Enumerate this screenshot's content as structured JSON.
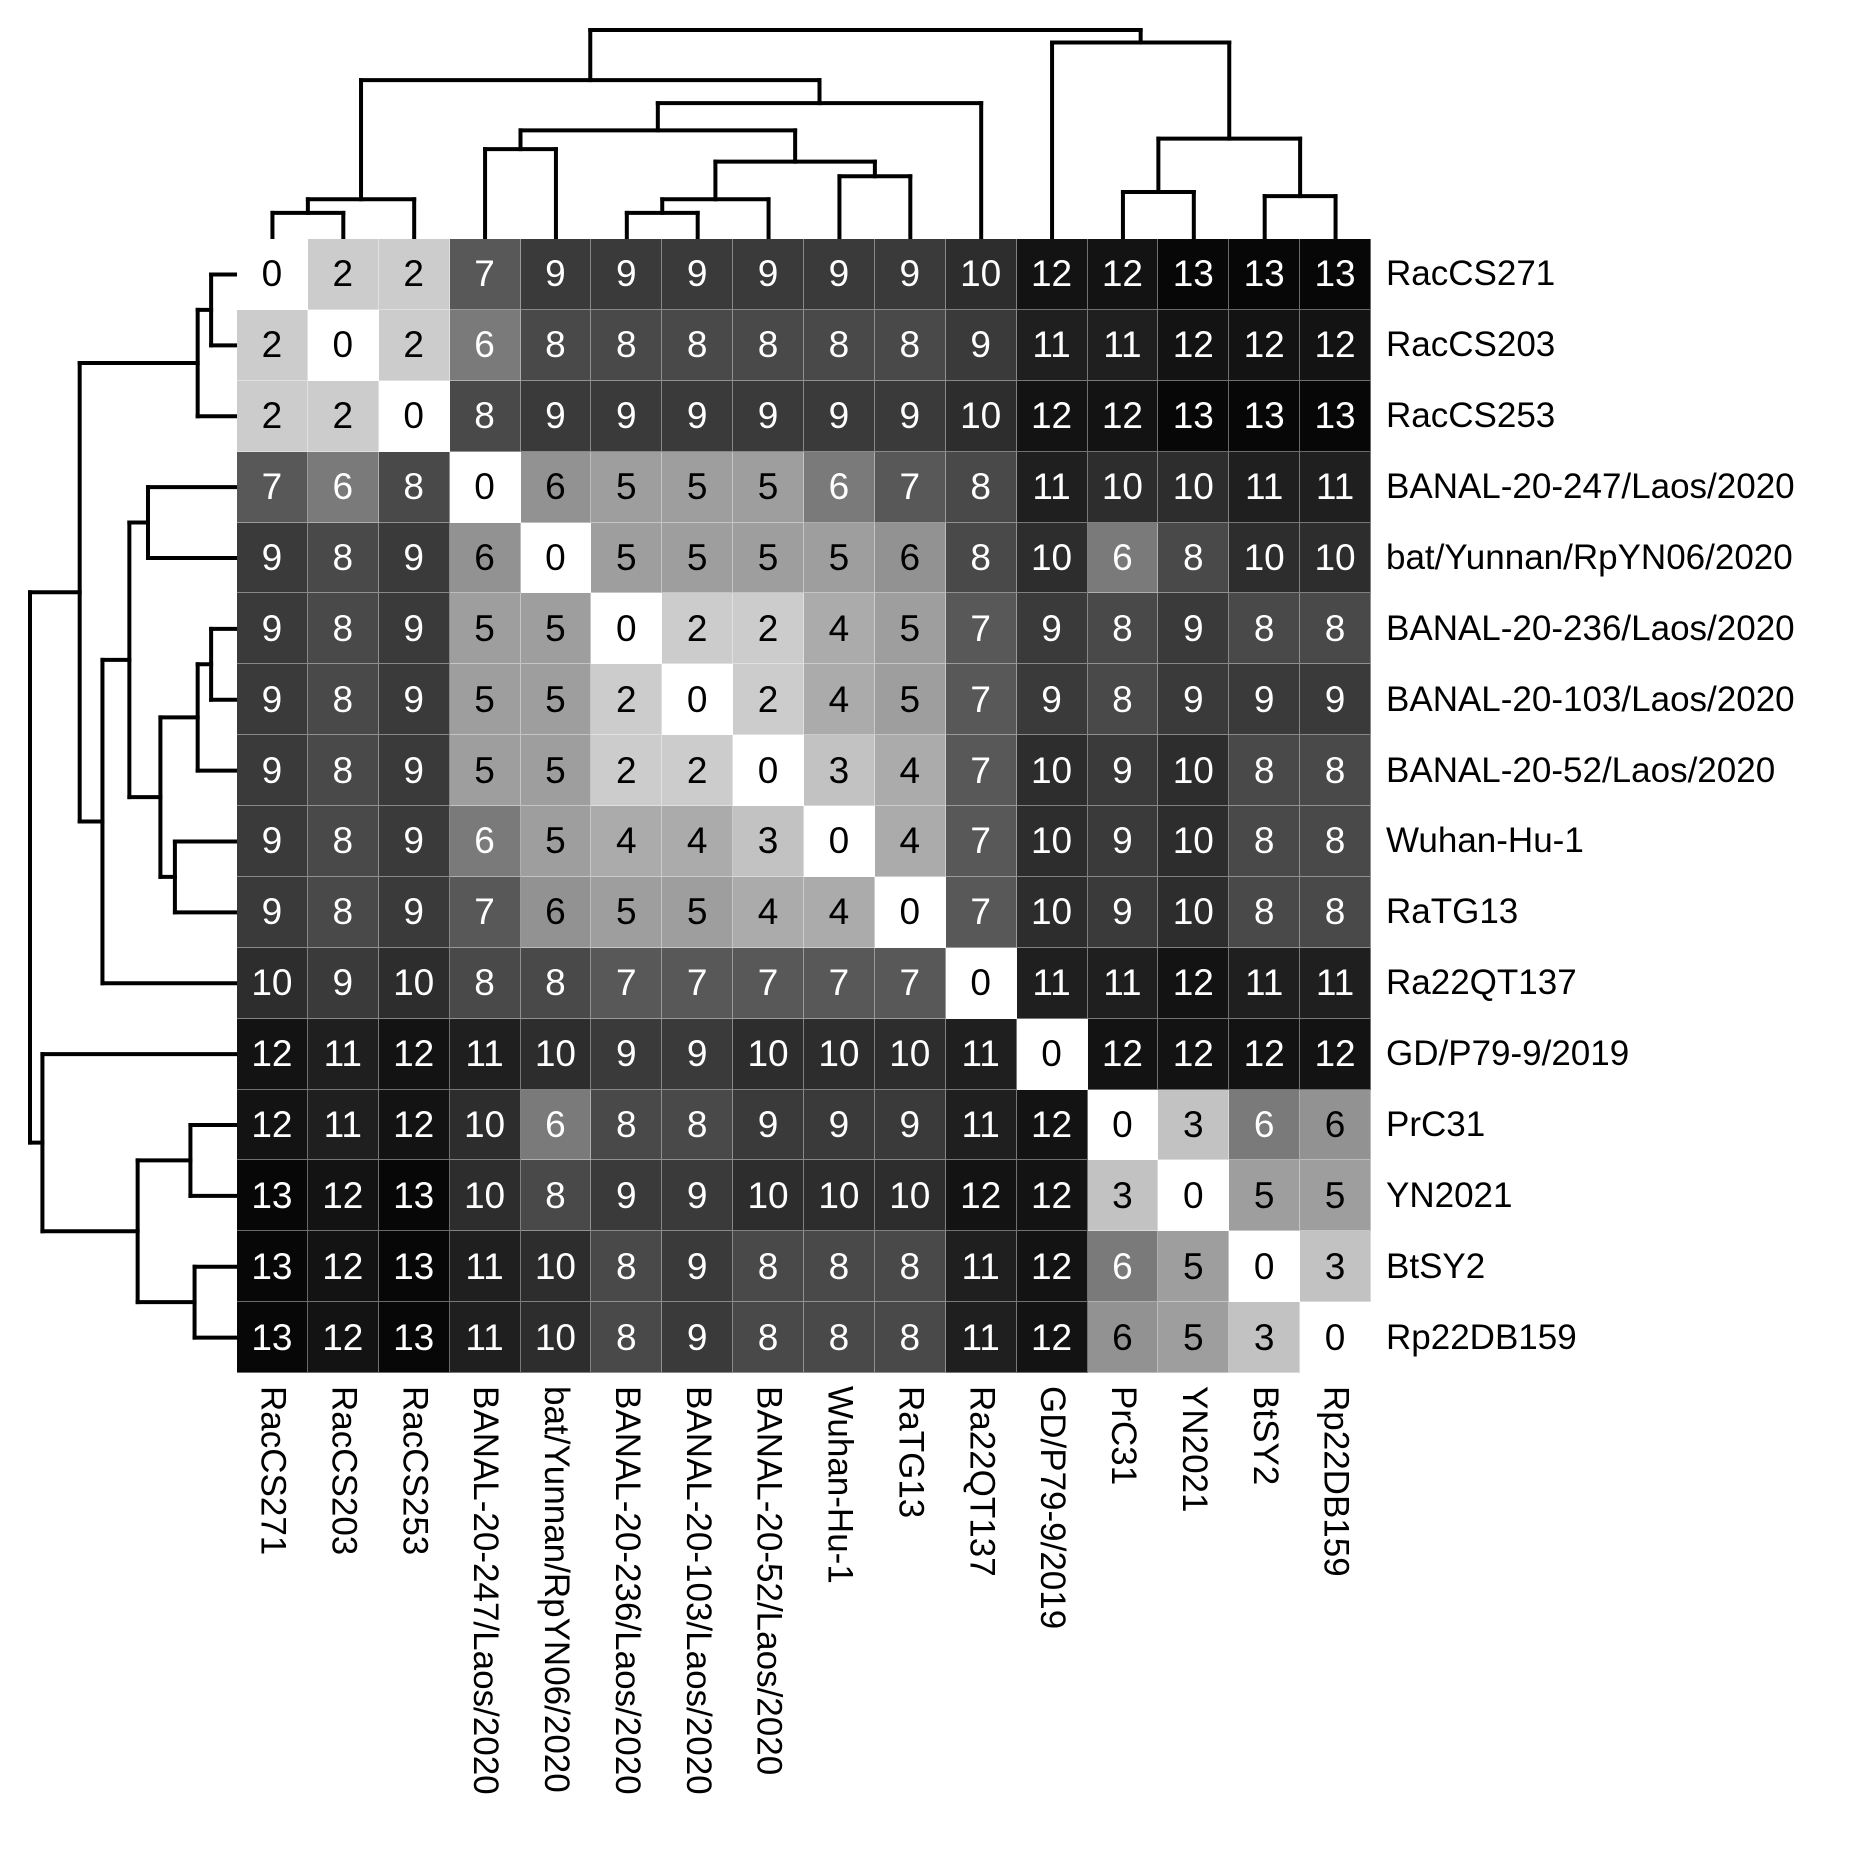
{
  "chart_data": {
    "type": "heatmap",
    "title": "",
    "description": "Pairwise distance matrix of sarbecovirus strains with hierarchical clustering dendrograms on top and left",
    "labels": [
      "RacCS271",
      "RacCS203",
      "RacCS253",
      "BANAL-20-247/Laos/2020",
      "bat/Yunnan/RpYN06/2020",
      "BANAL-20-236/Laos/2020",
      "BANAL-20-103/Laos/2020",
      "BANAL-20-52/Laos/2020",
      "Wuhan-Hu-1",
      "RaTG13",
      "Ra22QT137",
      "GD/P79-9/2019",
      "PrC31",
      "YN2021",
      "BtSY2",
      "Rp22DB159"
    ],
    "matrix": [
      [
        0,
        2,
        2,
        7,
        9,
        9,
        9,
        9,
        9,
        9,
        10,
        12,
        12,
        13,
        13,
        13
      ],
      [
        2,
        0,
        2,
        6,
        8,
        8,
        8,
        8,
        8,
        8,
        9,
        11,
        11,
        12,
        12,
        12
      ],
      [
        2,
        2,
        0,
        8,
        9,
        9,
        9,
        9,
        9,
        9,
        10,
        12,
        12,
        13,
        13,
        13
      ],
      [
        7,
        6,
        8,
        0,
        6,
        5,
        5,
        5,
        6,
        7,
        8,
        11,
        10,
        10,
        11,
        11
      ],
      [
        9,
        8,
        9,
        6,
        0,
        5,
        5,
        5,
        5,
        6,
        8,
        10,
        6,
        8,
        10,
        10
      ],
      [
        9,
        8,
        9,
        5,
        5,
        0,
        2,
        2,
        4,
        5,
        7,
        9,
        8,
        9,
        8,
        8
      ],
      [
        9,
        8,
        9,
        5,
        5,
        2,
        0,
        2,
        4,
        5,
        7,
        9,
        8,
        9,
        9,
        9
      ],
      [
        9,
        8,
        9,
        5,
        5,
        2,
        2,
        0,
        3,
        4,
        7,
        10,
        9,
        10,
        8,
        8
      ],
      [
        9,
        8,
        9,
        6,
        5,
        4,
        4,
        3,
        0,
        4,
        7,
        10,
        9,
        10,
        8,
        8
      ],
      [
        9,
        8,
        9,
        7,
        6,
        5,
        5,
        4,
        4,
        0,
        7,
        10,
        9,
        10,
        8,
        8
      ],
      [
        10,
        9,
        10,
        8,
        8,
        7,
        7,
        7,
        7,
        7,
        0,
        11,
        11,
        12,
        11,
        11
      ],
      [
        12,
        11,
        12,
        11,
        10,
        9,
        9,
        10,
        10,
        10,
        11,
        0,
        12,
        12,
        12,
        12
      ],
      [
        12,
        11,
        12,
        10,
        6,
        8,
        8,
        9,
        9,
        9,
        11,
        12,
        0,
        3,
        6,
        6
      ],
      [
        13,
        12,
        13,
        10,
        8,
        9,
        9,
        10,
        10,
        10,
        12,
        12,
        3,
        0,
        5,
        5
      ],
      [
        13,
        12,
        13,
        11,
        10,
        8,
        9,
        8,
        8,
        8,
        11,
        12,
        6,
        5,
        0,
        3
      ],
      [
        13,
        12,
        13,
        11,
        10,
        8,
        9,
        8,
        8,
        8,
        11,
        12,
        6,
        5,
        3,
        0
      ]
    ],
    "value_range": [
      0,
      13
    ],
    "colormap": {
      "0": "#ffffff",
      "1": "#e8e8e8",
      "2": "#cccccc",
      "3": "#c2c2c2",
      "4": "#ababab",
      "5": "#9e9e9e",
      "6": "#929292",
      "6dark": "#7a7a7a",
      "7": "#585858",
      "8": "#494949",
      "9": "#3a3a3a",
      "10": "#2d2d2d",
      "11": "#1f1f1f",
      "12": "#131313",
      "13": "#070707"
    },
    "white_text_min_value": 7,
    "six_white_text_pairs": [
      [
        1,
        3
      ],
      [
        3,
        8
      ],
      [
        4,
        12
      ],
      [
        12,
        14
      ]
    ],
    "dendrogram_line_color": "#000000",
    "dendrogram": [
      1.0,
      [
        0.76,
        [
          0.19,
          [
            0.125,
            0,
            1
          ],
          2
        ],
        [
          0.65,
          [
            0.52,
            [
              0.43,
              3,
              4
            ],
            [
              0.37,
              [
                0.19,
                [
                  0.125,
                  5,
                  6
                ],
                7
              ],
              [
                0.3,
                8,
                9
              ]
            ]
          ],
          10
        ]
      ],
      [
        0.94,
        11,
        [
          0.48,
          [
            0.225,
            12,
            13
          ],
          [
            0.205,
            14,
            15
          ]
        ]
      ]
    ],
    "legend": "none",
    "grid": false
  }
}
